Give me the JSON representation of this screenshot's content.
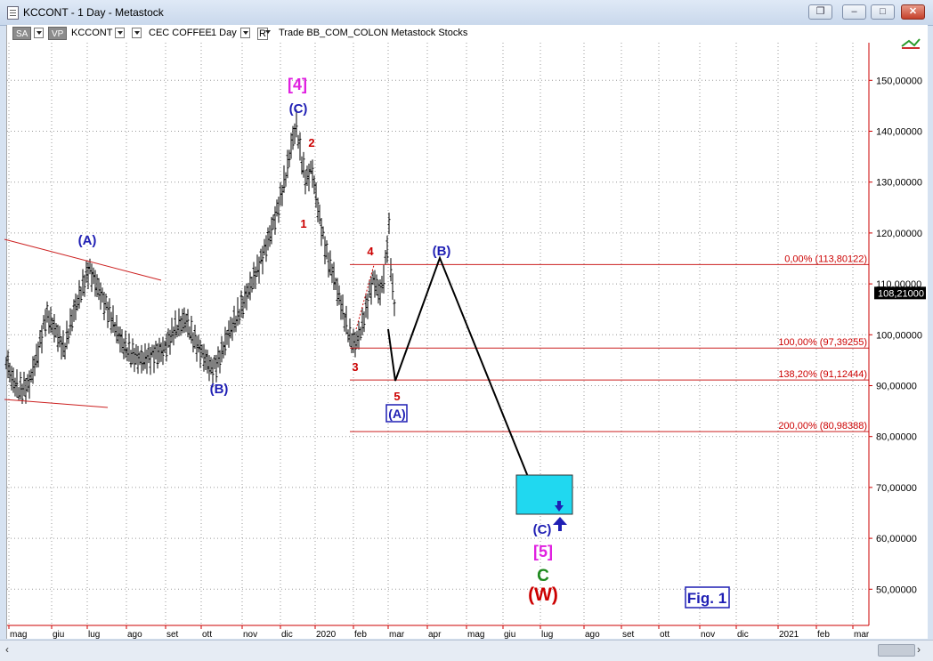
{
  "window": {
    "title": "KCCONT - 1 Day - Metastock",
    "min_label": "–",
    "max_label": "□",
    "close_label": "✕",
    "restore_label": "❐"
  },
  "toolbar": {
    "sa_label": "SA",
    "vp_label": "VP",
    "symbol": "KCCONT",
    "name": "CEC COFFEE",
    "period": "1 Day",
    "r_label": "R",
    "rest": "Trade  BB_COM_COLON  Metastock  Stocks"
  },
  "chart_data": {
    "type": "line",
    "series": [
      {
        "values": []
      }
    ],
    "y_axis": {
      "ticks": [
        "150,00000",
        "140,00000",
        "130,00000",
        "120,00000",
        "110,00000",
        "100,00000",
        "90,00000",
        "80,00000",
        "70,00000",
        "60,00000",
        "50,00000"
      ],
      "tick_values": [
        150,
        140,
        130,
        120,
        110,
        100,
        90,
        80,
        70,
        60,
        50
      ],
      "current_price": 108.21,
      "current_price_label": "108,21000"
    },
    "x_axis": {
      "ticks": [
        "mag",
        "giu",
        "lug",
        "ago",
        "set",
        "ott",
        "nov",
        "dic",
        "2020",
        "feb",
        "mar",
        "apr",
        "mag",
        "giu",
        "lug",
        "ago",
        "set",
        "ott",
        "nov",
        "dic",
        "2021",
        "feb",
        "mar"
      ]
    },
    "fib_levels": [
      {
        "label": "0,00% (113,80122)",
        "value": 113.80122
      },
      {
        "label": "100,00% (97,39255)",
        "value": 97.39255
      },
      {
        "label": "138,20% (91,12444)",
        "value": 91.12444
      },
      {
        "label": "200,00% (80,98388)",
        "value": 80.98388
      }
    ],
    "annotations": {
      "wave4": "[4]",
      "wave5": "[5]",
      "c_upper": "(C)",
      "a_left": "(A)",
      "b_left": "(B)",
      "b_right": "(B)",
      "a_boxed": "(A)",
      "c_lower": "(C)",
      "w_red": "(W)",
      "c_green": "C",
      "n1": "1",
      "n2": "2",
      "n3": "3",
      "n4": "4",
      "n5": "5",
      "fig": "Fig. 1"
    },
    "colors": {
      "blue": "#1f1fb4",
      "magenta": "#e020e0",
      "red": "#cc0000",
      "green": "#1f8a1f",
      "cyan": "#20d8f0",
      "fib_line": "#cc2020",
      "axis_red": "#cc0000"
    }
  }
}
